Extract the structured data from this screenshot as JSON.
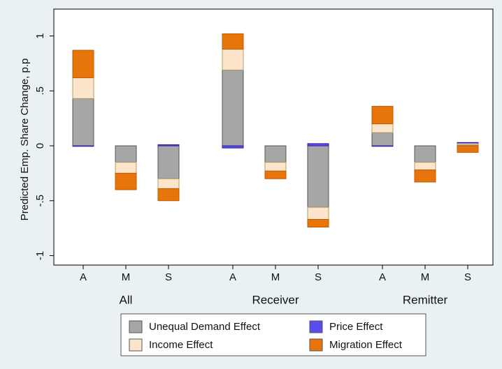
{
  "chart_data": {
    "type": "stacked_bar",
    "y_label": "Predicted Emp. Share Change, p.p",
    "categories": [
      "A",
      "M",
      "S",
      "A",
      "M",
      "S",
      "A",
      "M",
      "S"
    ],
    "groups": [
      "All",
      "Receiver",
      "Remitter"
    ],
    "series": [
      {
        "name": "Unequal Demand Effect",
        "color": "#a6a6a6",
        "values": [
          0.43,
          -0.15,
          -0.3,
          0.69,
          -0.15,
          -0.56,
          0.12,
          -0.15,
          0.01
        ]
      },
      {
        "name": "Income Effect",
        "color": "#fde5cc",
        "values": [
          0.19,
          -0.1,
          -0.09,
          0.19,
          -0.08,
          -0.11,
          0.08,
          -0.07,
          0.015
        ]
      },
      {
        "name": "Price Effect",
        "color": "#5a4cf0",
        "values": [
          -0.005,
          0,
          0.01,
          -0.02,
          0,
          0.02,
          -0.005,
          0,
          0.005
        ]
      },
      {
        "name": "Migration Effect",
        "color": "#e8740c",
        "values": [
          0.25,
          -0.15,
          -0.11,
          0.14,
          -0.07,
          -0.07,
          0.16,
          -0.11,
          -0.06
        ]
      }
    ],
    "ylim": [
      -1.086,
      1.245
    ],
    "yticks": [
      -1,
      {
        "value": -0.5,
        "label": "-.5"
      },
      0,
      {
        "value": 0.5,
        "label": ".5"
      },
      1
    ],
    "legend": "bottom"
  }
}
